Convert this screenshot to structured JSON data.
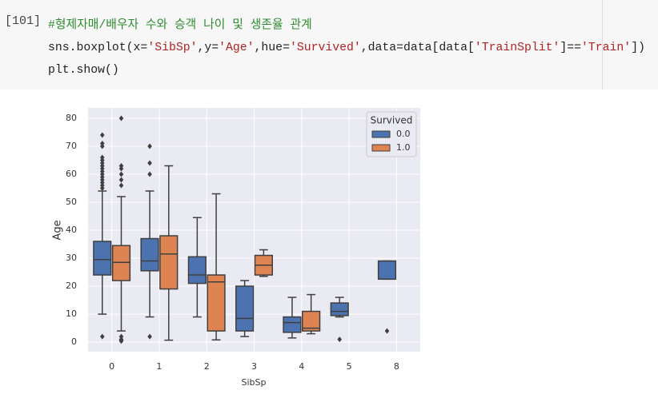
{
  "cell": {
    "prompt": "[101]",
    "lines": [
      [
        {
          "text": "#형제자매/배우자 수와 승객 나이 및 생존율 관계",
          "color": "#2e8b2e"
        }
      ],
      [
        {
          "text": "sns.boxplot(x=",
          "color": "#222222"
        },
        {
          "text": "'SibSp'",
          "color": "#b22222"
        },
        {
          "text": ",y=",
          "color": "#222222"
        },
        {
          "text": "'Age'",
          "color": "#b22222"
        },
        {
          "text": ",hue=",
          "color": "#222222"
        },
        {
          "text": "'Survived'",
          "color": "#b22222"
        },
        {
          "text": ",data=data[data[",
          "color": "#222222"
        },
        {
          "text": "'TrainSplit'",
          "color": "#b22222"
        },
        {
          "text": "]==",
          "color": "#222222"
        },
        {
          "text": "'Train'",
          "color": "#b22222"
        },
        {
          "text": "])",
          "color": "#222222"
        }
      ],
      [
        {
          "text": "plt.show()",
          "color": "#222222"
        }
      ]
    ]
  },
  "chart_data": {
    "type": "boxplot",
    "x_label": "SibSp",
    "y_label": "Age",
    "categories": [
      "0",
      "1",
      "2",
      "3",
      "4",
      "5",
      "8"
    ],
    "legend_title": "Survived",
    "legend": "upper right",
    "grid": true,
    "ylim": [
      -3.4,
      83.7
    ],
    "yticks": [
      0,
      10,
      20,
      30,
      40,
      50,
      60,
      70,
      80
    ],
    "series": [
      {
        "name": "0.0",
        "color": "#4c72b0",
        "values": [
          [
            10,
            24,
            29.5,
            36,
            54
          ],
          [
            9,
            25.5,
            29,
            37,
            54
          ],
          [
            9,
            21,
            24,
            30.5,
            44.5
          ],
          [
            2,
            4,
            8.5,
            20,
            22
          ],
          [
            1.5,
            3.5,
            7,
            9,
            16
          ],
          [
            9,
            9.5,
            11,
            14,
            16
          ],
          [
            22.5,
            22.5,
            22.5,
            29,
            29
          ]
        ],
        "outliers": [
          [
            2,
            55,
            56,
            57,
            58,
            59,
            60,
            61,
            62,
            63,
            64,
            65,
            66,
            70,
            71,
            74
          ],
          [
            2,
            60,
            64,
            70
          ],
          [],
          [],
          [],
          [
            1
          ],
          [
            4
          ]
        ]
      },
      {
        "name": "1.0",
        "color": "#dd8452",
        "values": [
          [
            4,
            22,
            28.5,
            34.5,
            52
          ],
          [
            0.7,
            19,
            31.5,
            38,
            63
          ],
          [
            0.8,
            4,
            21.5,
            24,
            53
          ],
          [
            23.5,
            24,
            27.5,
            31,
            33
          ],
          [
            3,
            4,
            5,
            11,
            17
          ],
          null,
          null
        ],
        "outliers": [
          [
            0.4,
            0.7,
            1,
            2,
            56,
            58,
            60,
            62,
            63,
            80
          ],
          [],
          [],
          [],
          [],
          [],
          []
        ]
      }
    ]
  }
}
